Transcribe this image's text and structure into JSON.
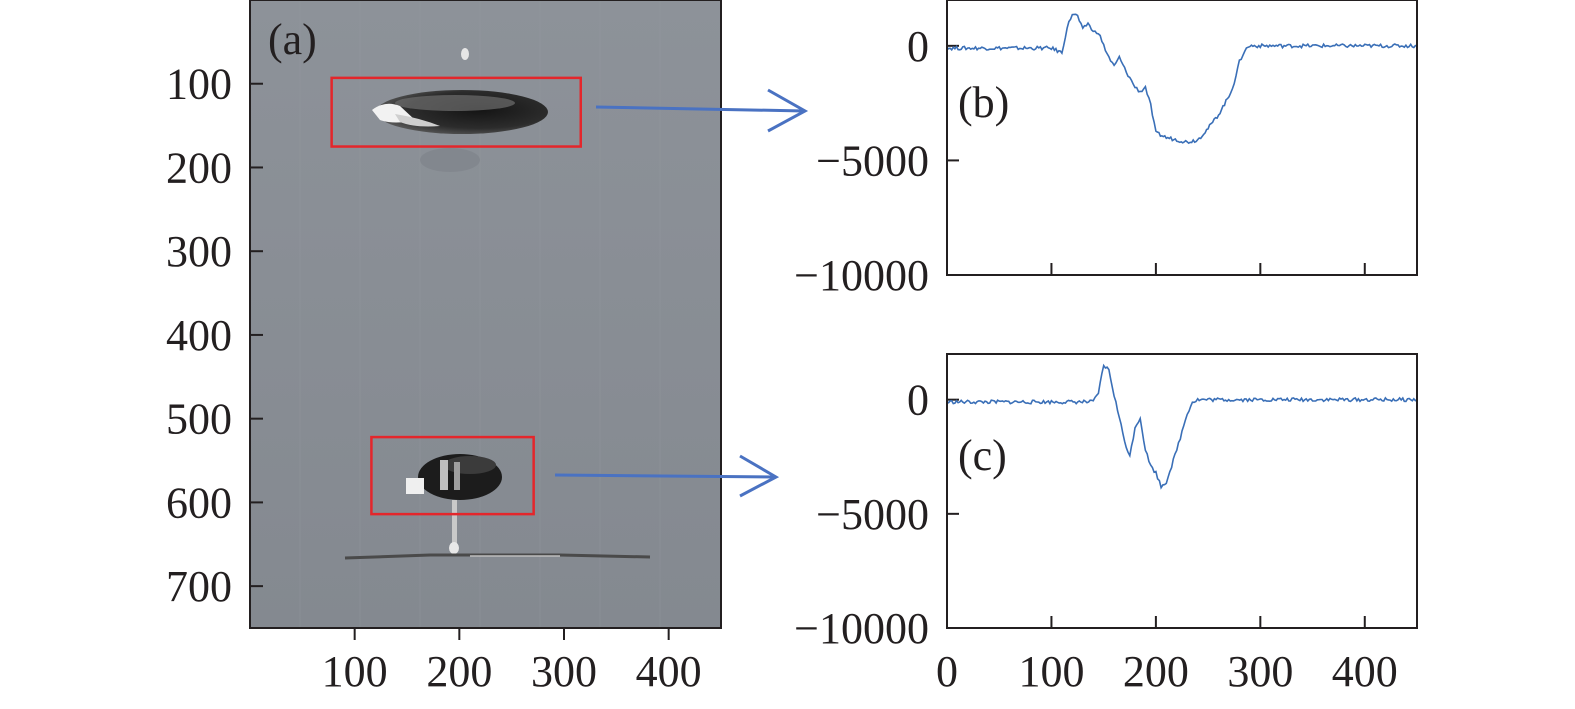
{
  "colors": {
    "series": "#3a6fb7",
    "arrow": "#4a72c2",
    "roi_box": "#e4262b",
    "axis": "#231f20",
    "image_background": "#8a8f96"
  },
  "chart_data": [
    {
      "id": "a",
      "type": "image",
      "panel_label": "(a)",
      "xlim": [
        0,
        450
      ],
      "ylim": [
        750,
        0
      ],
      "x_ticks": [
        100,
        200,
        300,
        400
      ],
      "x_tick_labels": [
        "100",
        "200",
        "300",
        "400"
      ],
      "y_ticks": [
        100,
        200,
        300,
        400,
        500,
        600,
        700
      ],
      "y_tick_labels": [
        "100",
        "200",
        "300",
        "400",
        "500",
        "600",
        "700"
      ],
      "regions_of_interest": [
        {
          "x": [
            78,
            316
          ],
          "y": [
            93,
            175
          ],
          "links_to": "b"
        },
        {
          "x": [
            116,
            271
          ],
          "y": [
            522,
            614
          ],
          "links_to": "c"
        }
      ]
    },
    {
      "id": "b",
      "type": "line",
      "panel_label": "(b)",
      "xlim": [
        0,
        450
      ],
      "ylim": [
        -10000,
        2000
      ],
      "x_ticks": [
        0,
        100,
        200,
        300,
        400
      ],
      "x_tick_labels": [
        "",
        "",
        "",
        "",
        ""
      ],
      "y_ticks": [
        0,
        -5000,
        -10000
      ],
      "y_tick_labels": [
        "0",
        "−5000",
        "−10000"
      ],
      "x": [
        0,
        50,
        100,
        110,
        115,
        120,
        125,
        130,
        135,
        140,
        145,
        150,
        155,
        160,
        165,
        170,
        175,
        180,
        185,
        190,
        195,
        200,
        210,
        220,
        230,
        240,
        250,
        260,
        270,
        275,
        280,
        285,
        290,
        300,
        350,
        400,
        450
      ],
      "y": [
        -100,
        -100,
        -100,
        -300,
        800,
        1400,
        1300,
        700,
        1000,
        600,
        600,
        0,
        -500,
        -900,
        -500,
        -1000,
        -1400,
        -1800,
        -2000,
        -1800,
        -2600,
        -3800,
        -4000,
        -4100,
        -4200,
        -4100,
        -3600,
        -3000,
        -2200,
        -1600,
        -700,
        -200,
        0,
        0,
        0,
        0,
        0
      ]
    },
    {
      "id": "c",
      "type": "line",
      "panel_label": "(c)",
      "xlim": [
        0,
        450
      ],
      "ylim": [
        -10000,
        2000
      ],
      "x_ticks": [
        0,
        100,
        200,
        300,
        400
      ],
      "x_tick_labels": [
        "0",
        "100",
        "200",
        "300",
        "400"
      ],
      "y_ticks": [
        0,
        -5000,
        -10000
      ],
      "y_tick_labels": [
        "0",
        "−5000",
        "−10000"
      ],
      "x": [
        0,
        50,
        100,
        140,
        145,
        150,
        155,
        160,
        165,
        170,
        175,
        180,
        185,
        190,
        195,
        200,
        205,
        210,
        215,
        220,
        225,
        230,
        235,
        240,
        250,
        300,
        350,
        400,
        450
      ],
      "y": [
        -100,
        -100,
        -100,
        -100,
        300,
        1500,
        1300,
        200,
        -800,
        -1800,
        -2500,
        -1200,
        -800,
        -2200,
        -2900,
        -3200,
        -3800,
        -3600,
        -2900,
        -2200,
        -1400,
        -600,
        -100,
        0,
        0,
        0,
        0,
        0,
        0
      ]
    }
  ]
}
